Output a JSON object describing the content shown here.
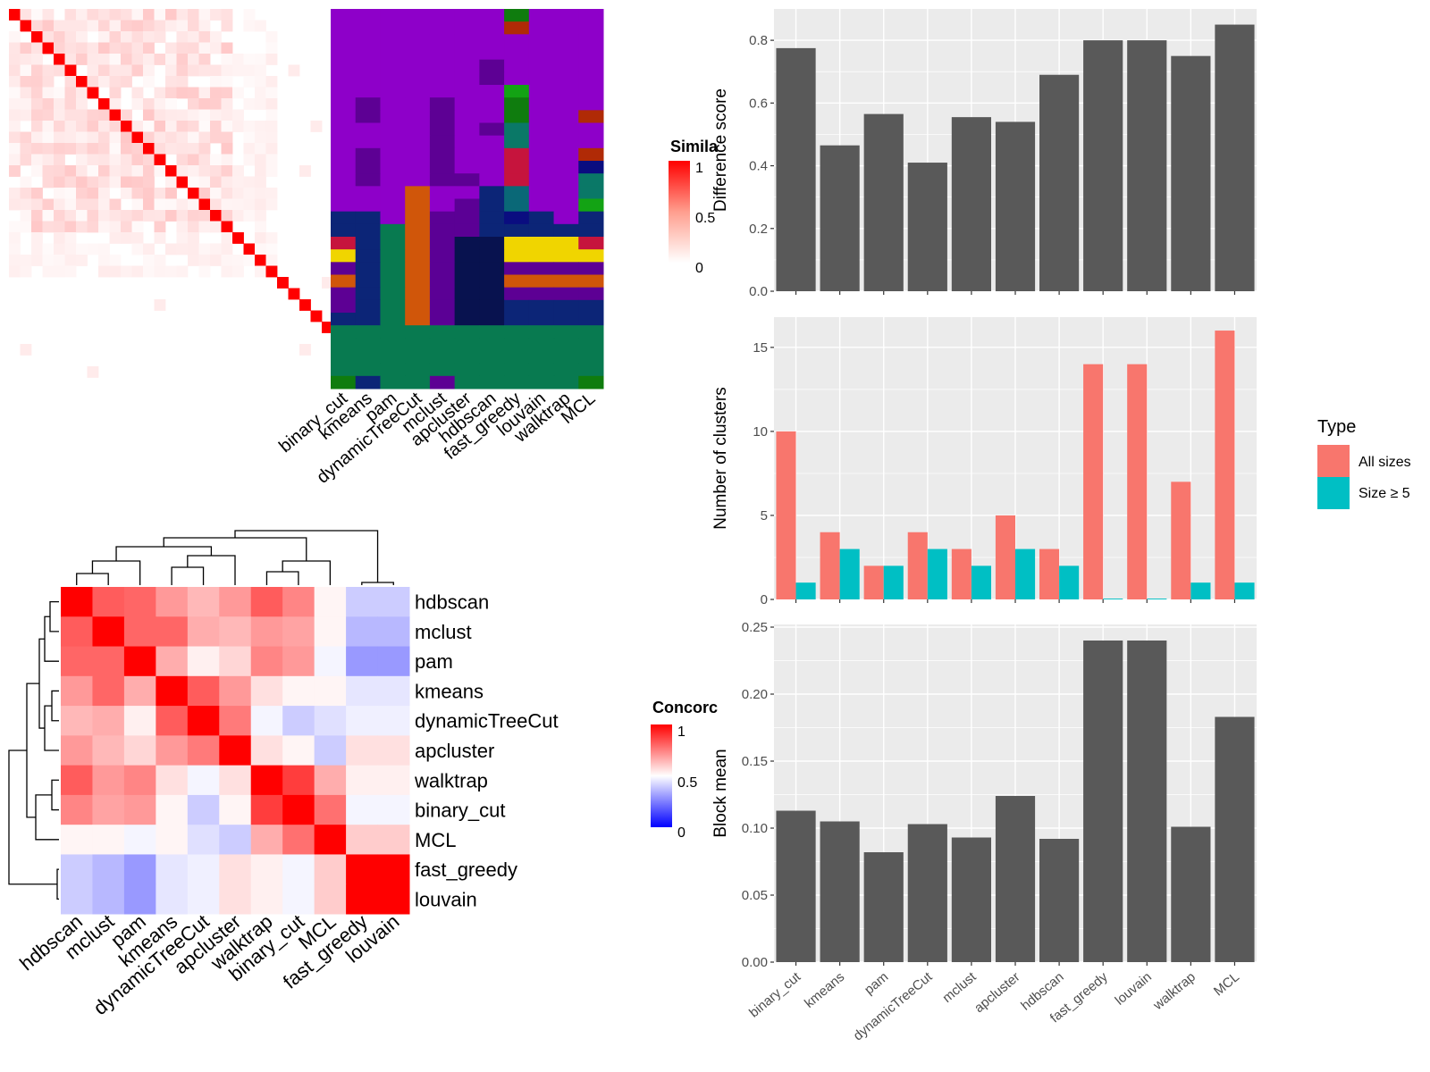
{
  "colors": {
    "panel_bg": "#ebebeb",
    "grid": "#ffffff",
    "bar": "#595959",
    "all_sizes": "#f8766d",
    "size5": "#00bfc4",
    "similarity_high": "#ff0000",
    "concordance_low": "#0000ff"
  },
  "chart_data": [
    {
      "id": "similarity",
      "type": "heatmap",
      "legend_title": "Simila",
      "legend_ticks": [
        "1",
        "0.5",
        "0"
      ],
      "n": 34
    },
    {
      "id": "cluster_assignments",
      "type": "heatmap",
      "columns": [
        "binary_cut",
        "kmeans",
        "pam",
        "dynamicTreeCut",
        "mclust",
        "apcluster",
        "hdbscan",
        "fast_greedy",
        "louvain",
        "walktrap",
        "MCL"
      ],
      "palette": [
        "#8e00c9",
        "#5d0094",
        "#5b0095",
        "#0c2577",
        "#08124f",
        "#087a50",
        "#d0560a",
        "#c6143d",
        "#f0d500",
        "#0f7c0e",
        "#13a314",
        "#0a7867",
        "#0a6877",
        "#0a0d80",
        "#b02a06"
      ],
      "rows": [
        [
          0,
          0,
          0,
          0,
          0,
          0,
          0,
          9,
          0,
          0,
          0
        ],
        [
          0,
          0,
          0,
          0,
          0,
          0,
          0,
          14,
          0,
          0,
          0
        ],
        [
          0,
          0,
          0,
          0,
          0,
          0,
          0,
          0,
          0,
          0,
          0
        ],
        [
          0,
          0,
          0,
          0,
          0,
          0,
          0,
          0,
          0,
          0,
          0
        ],
        [
          0,
          0,
          0,
          0,
          0,
          0,
          1,
          0,
          0,
          0,
          0
        ],
        [
          0,
          0,
          0,
          0,
          0,
          0,
          1,
          0,
          0,
          0,
          0
        ],
        [
          0,
          0,
          0,
          0,
          0,
          0,
          0,
          10,
          0,
          0,
          0
        ],
        [
          0,
          1,
          0,
          0,
          1,
          0,
          0,
          9,
          0,
          0,
          0
        ],
        [
          0,
          1,
          0,
          0,
          1,
          0,
          0,
          9,
          0,
          0,
          14
        ],
        [
          0,
          0,
          0,
          0,
          1,
          0,
          1,
          11,
          0,
          0,
          0
        ],
        [
          0,
          0,
          0,
          0,
          1,
          0,
          0,
          11,
          0,
          0,
          0
        ],
        [
          0,
          1,
          0,
          0,
          1,
          0,
          0,
          7,
          0,
          0,
          14
        ],
        [
          0,
          1,
          0,
          0,
          1,
          0,
          0,
          7,
          0,
          0,
          13
        ],
        [
          0,
          1,
          0,
          0,
          1,
          1,
          0,
          7,
          0,
          0,
          11
        ],
        [
          0,
          0,
          0,
          6,
          0,
          0,
          3,
          12,
          0,
          0,
          11
        ],
        [
          0,
          0,
          0,
          6,
          0,
          2,
          3,
          12,
          0,
          0,
          10
        ],
        [
          3,
          3,
          0,
          6,
          2,
          2,
          3,
          13,
          3,
          0,
          3
        ],
        [
          3,
          3,
          5,
          6,
          2,
          2,
          3,
          3,
          3,
          3,
          3
        ],
        [
          7,
          3,
          5,
          6,
          2,
          4,
          4,
          8,
          8,
          8,
          7
        ],
        [
          8,
          3,
          5,
          6,
          2,
          4,
          4,
          8,
          8,
          8,
          8
        ],
        [
          1,
          3,
          5,
          6,
          2,
          4,
          4,
          1,
          1,
          1,
          1
        ],
        [
          6,
          3,
          5,
          6,
          2,
          4,
          4,
          6,
          6,
          6,
          6
        ],
        [
          1,
          3,
          5,
          6,
          2,
          4,
          4,
          1,
          1,
          1,
          1
        ],
        [
          1,
          3,
          5,
          6,
          2,
          4,
          4,
          3,
          3,
          3,
          3
        ],
        [
          3,
          3,
          5,
          6,
          2,
          4,
          4,
          3,
          3,
          3,
          3
        ],
        [
          5,
          5,
          5,
          5,
          5,
          5,
          5,
          5,
          5,
          5,
          5
        ],
        [
          5,
          5,
          5,
          5,
          5,
          5,
          5,
          5,
          5,
          5,
          5
        ],
        [
          5,
          5,
          5,
          5,
          5,
          5,
          5,
          5,
          5,
          5,
          5
        ],
        [
          5,
          5,
          5,
          5,
          5,
          5,
          5,
          5,
          5,
          5,
          5
        ],
        [
          9,
          3,
          5,
          5,
          1,
          5,
          5,
          5,
          5,
          5,
          9
        ]
      ]
    },
    {
      "id": "concordance",
      "type": "heatmap",
      "legend_title": "Concorc",
      "legend_ticks": [
        "1",
        "0.5",
        "0"
      ],
      "labels": [
        "hdbscan",
        "mclust",
        "pam",
        "kmeans",
        "dynamicTreeCut",
        "apcluster",
        "walktrap",
        "binary_cut",
        "MCL",
        "fast_greedy",
        "louvain"
      ],
      "matrix": [
        [
          1.0,
          0.82,
          0.8,
          0.7,
          0.64,
          0.7,
          0.82,
          0.74,
          0.52,
          0.4,
          0.4
        ],
        [
          0.82,
          1.0,
          0.8,
          0.8,
          0.66,
          0.64,
          0.7,
          0.68,
          0.52,
          0.36,
          0.36
        ],
        [
          0.8,
          0.8,
          1.0,
          0.66,
          0.53,
          0.58,
          0.74,
          0.7,
          0.48,
          0.3,
          0.3
        ],
        [
          0.7,
          0.8,
          0.66,
          1.0,
          0.82,
          0.7,
          0.56,
          0.52,
          0.52,
          0.45,
          0.45
        ],
        [
          0.64,
          0.66,
          0.53,
          0.82,
          1.0,
          0.76,
          0.48,
          0.4,
          0.44,
          0.47,
          0.47
        ],
        [
          0.7,
          0.64,
          0.58,
          0.7,
          0.76,
          1.0,
          0.56,
          0.52,
          0.4,
          0.56,
          0.56
        ],
        [
          0.82,
          0.7,
          0.74,
          0.56,
          0.48,
          0.56,
          1.0,
          0.88,
          0.66,
          0.53,
          0.53
        ],
        [
          0.74,
          0.68,
          0.7,
          0.52,
          0.4,
          0.52,
          0.88,
          1.0,
          0.78,
          0.48,
          0.48
        ],
        [
          0.52,
          0.52,
          0.48,
          0.52,
          0.44,
          0.4,
          0.66,
          0.78,
          1.0,
          0.6,
          0.6
        ],
        [
          0.4,
          0.36,
          0.3,
          0.45,
          0.47,
          0.56,
          0.53,
          0.48,
          0.6,
          1.0,
          1.0
        ],
        [
          0.4,
          0.36,
          0.3,
          0.45,
          0.47,
          0.56,
          0.53,
          0.48,
          0.6,
          1.0,
          1.0
        ]
      ]
    },
    {
      "id": "difference_score",
      "type": "bar",
      "categories": [
        "binary_cut",
        "kmeans",
        "pam",
        "dynamicTreeCut",
        "mclust",
        "apcluster",
        "hdbscan",
        "fast_greedy",
        "louvain",
        "walktrap",
        "MCL"
      ],
      "values": [
        0.775,
        0.465,
        0.565,
        0.41,
        0.555,
        0.54,
        0.69,
        0.8,
        0.8,
        0.75,
        0.85
      ],
      "ylabel": "Difference score",
      "ylim": [
        0,
        0.9
      ],
      "yticks": [
        0.0,
        0.2,
        0.4,
        0.6,
        0.8
      ],
      "ytick_labels": [
        "0.0",
        "0.2",
        "0.4",
        "0.6",
        "0.8"
      ]
    },
    {
      "id": "number_of_clusters",
      "type": "bar",
      "categories": [
        "binary_cut",
        "kmeans",
        "pam",
        "dynamicTreeCut",
        "mclust",
        "apcluster",
        "hdbscan",
        "fast_greedy",
        "louvain",
        "walktrap",
        "MCL"
      ],
      "series": [
        {
          "name": "All sizes",
          "values": [
            10,
            4,
            2,
            4,
            3,
            5,
            3,
            14,
            14,
            7,
            16
          ]
        },
        {
          "name": "Size ≥ 5",
          "values": [
            1,
            3,
            2,
            3,
            2,
            3,
            2,
            0.05,
            0.05,
            1,
            1
          ]
        }
      ],
      "ylabel": "Number of clusters",
      "ylim": [
        0,
        16.8
      ],
      "yticks": [
        0,
        5,
        10,
        15
      ],
      "ytick_labels": [
        "0",
        "5",
        "10",
        "15"
      ],
      "legend_title": "Type",
      "legend_position": "right"
    },
    {
      "id": "block_mean",
      "type": "bar",
      "categories": [
        "binary_cut",
        "kmeans",
        "pam",
        "dynamicTreeCut",
        "mclust",
        "apcluster",
        "hdbscan",
        "fast_greedy",
        "louvain",
        "walktrap",
        "MCL"
      ],
      "values": [
        0.113,
        0.105,
        0.082,
        0.103,
        0.093,
        0.124,
        0.092,
        0.24,
        0.24,
        0.101,
        0.183
      ],
      "ylabel": "Block mean",
      "ylim": [
        0,
        0.252
      ],
      "yticks": [
        0.0,
        0.05,
        0.1,
        0.15,
        0.2,
        0.25
      ],
      "ytick_labels": [
        "0.00",
        "0.05",
        "0.10",
        "0.15",
        "0.20",
        "0.25"
      ]
    }
  ]
}
